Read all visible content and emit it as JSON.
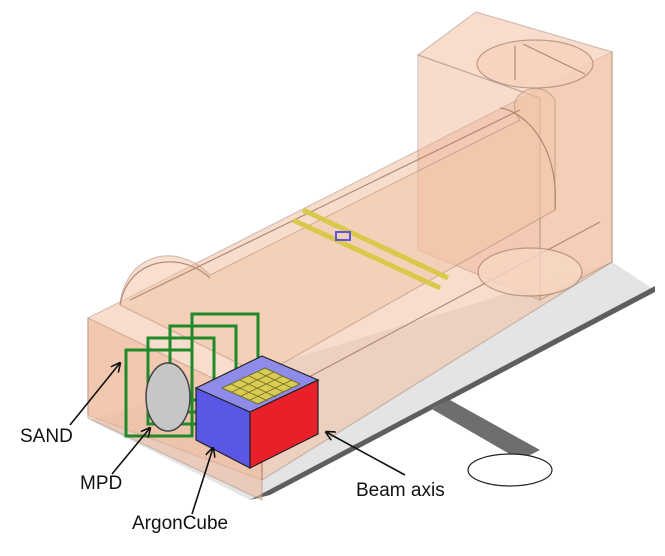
{
  "figure": {
    "description_labels": {
      "sand": "SAND",
      "mpd": "MPD",
      "argoncube": "ArgonCube",
      "beam_axis": "Beam axis"
    }
  },
  "colors": {
    "hall_fill": "#f3c3a6",
    "hall_edge": "#b08a76",
    "argoncube_blue": "#5b57e6",
    "argoncube_red": "#e8202a",
    "mpd_green": "#1f8a2a",
    "grid_yellow": "#d9cc52",
    "shadow": "#6e6e6e",
    "arrow": "#111111"
  }
}
